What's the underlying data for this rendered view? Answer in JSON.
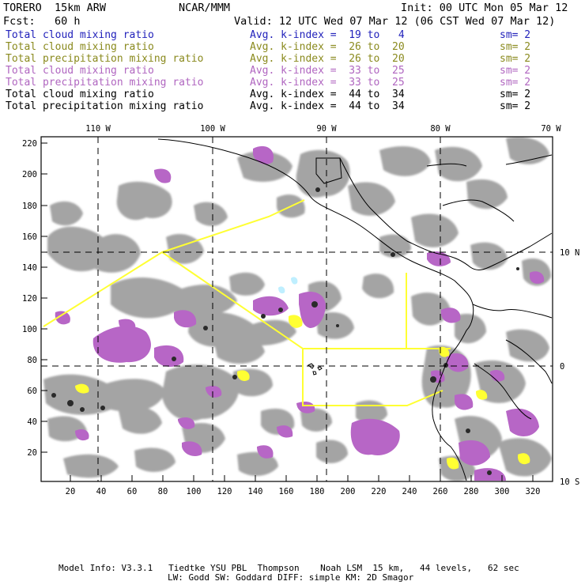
{
  "header": {
    "model": "TORERO  15km ARW",
    "org": "NCAR/MMM",
    "init": "Init: 00 UTC Mon 05 Mar 12",
    "fcst": "Fcst:   60 h",
    "valid": "Valid: 12 UTC Wed 07 Mar 12 (06 CST Wed 07 Mar 12)"
  },
  "legend": [
    {
      "name": "Total cloud mixing ratio",
      "range": "Avg. k-index =  19 to   4",
      "sm": "sm= 2",
      "color": "#2222bb"
    },
    {
      "name": "Total cloud mixing ratio",
      "range": "Avg. k-index =  26 to  20",
      "sm": "sm= 2",
      "color": "#8a8a1e"
    },
    {
      "name": "Total precipitation mixing ratio",
      "range": "Avg. k-index =  26 to  20",
      "sm": "sm= 2",
      "color": "#8a8a1e"
    },
    {
      "name": "Total cloud mixing ratio",
      "range": "Avg. k-index =  33 to  25",
      "sm": "sm= 2",
      "color": "#b066c0"
    },
    {
      "name": "Total precipitation mixing ratio",
      "range": "Avg. k-index =  33 to  25",
      "sm": "sm= 2",
      "color": "#b066c0"
    },
    {
      "name": "Total cloud mixing ratio",
      "range": "Avg. k-index =  44 to  34",
      "sm": "sm= 2",
      "color": "#000000"
    },
    {
      "name": "Total precipitation mixing ratio",
      "range": "Avg. k-index =  44 to  34",
      "sm": "sm= 2",
      "color": "#000000"
    }
  ],
  "axes": {
    "top": [
      "110 W",
      "100 W",
      "90 W",
      "80 W",
      "70 W"
    ],
    "right": [
      "10 N",
      "0",
      "10 S"
    ],
    "left": [
      "220",
      "200",
      "180",
      "160",
      "140",
      "120",
      "100",
      "80",
      "60",
      "40",
      "20"
    ],
    "bottom": [
      "20",
      "40",
      "60",
      "80",
      "100",
      "120",
      "140",
      "160",
      "180",
      "200",
      "220",
      "240",
      "260",
      "280",
      "300",
      "320"
    ]
  },
  "footer": {
    "line1": "Model Info: V3.3.1   Tiedtke YSU PBL  Thompson    Noah LSM  15 km,   44 levels,   62 sec",
    "line2": "LW: Godd SW: Goddard DIFF: simple KM: 2D Smagor"
  },
  "colors": {
    "cloud_gray": "#a4a4a4",
    "precip_purple": "#b766c6",
    "yellow": "#ffff33",
    "cyan": "#bfefff",
    "grid": "#000000",
    "coast": "#000000"
  }
}
